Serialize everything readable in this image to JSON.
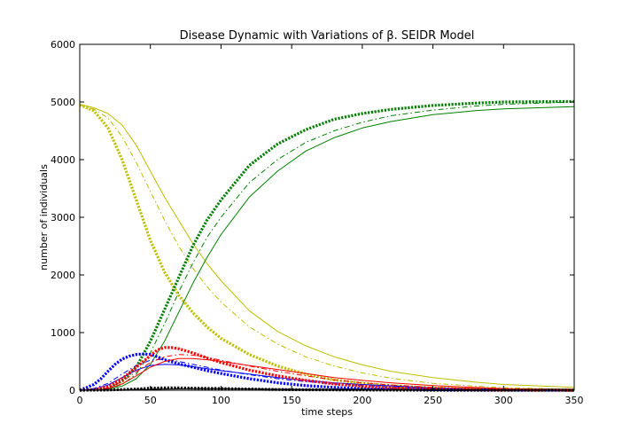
{
  "chart_data": {
    "type": "line",
    "title": "Disease Dynamic with Variations of β. SEIDR Model",
    "xlabel": "time steps",
    "ylabel": "number of individuals",
    "xlim": [
      0,
      350
    ],
    "ylim": [
      0,
      6000
    ],
    "xticks": [
      "0",
      "50",
      "100",
      "150",
      "200",
      "250",
      "300",
      "350"
    ],
    "yticks": [
      "0",
      "1000",
      "2000",
      "3000",
      "4000",
      "5000",
      "6000"
    ],
    "grid": false,
    "legend": "none",
    "series": [
      {
        "color": "#bfbf00",
        "style": "dotted-thick",
        "x": [
          0,
          10,
          20,
          30,
          40,
          50,
          60,
          70,
          80,
          90,
          100,
          120,
          140,
          160,
          180,
          200,
          220,
          250,
          280,
          300,
          350
        ],
        "y": [
          4950,
          4850,
          4550,
          4000,
          3300,
          2600,
          2050,
          1650,
          1350,
          1100,
          900,
          620,
          420,
          280,
          180,
          120,
          80,
          40,
          20,
          10,
          5
        ]
      },
      {
        "color": "#bfbf00",
        "style": "dashdot",
        "x": [
          0,
          10,
          20,
          30,
          40,
          50,
          60,
          70,
          80,
          90,
          100,
          120,
          140,
          160,
          180,
          200,
          220,
          250,
          280,
          300,
          350
        ],
        "y": [
          4950,
          4880,
          4720,
          4400,
          3950,
          3450,
          2950,
          2500,
          2120,
          1800,
          1530,
          1100,
          800,
          580,
          420,
          300,
          210,
          120,
          70,
          45,
          15
        ]
      },
      {
        "color": "#bfbf00",
        "style": "solid",
        "x": [
          0,
          10,
          20,
          30,
          40,
          50,
          60,
          70,
          80,
          90,
          100,
          120,
          140,
          160,
          180,
          200,
          220,
          250,
          280,
          300,
          350
        ],
        "y": [
          4960,
          4900,
          4800,
          4600,
          4250,
          3800,
          3350,
          2950,
          2550,
          2200,
          1900,
          1380,
          1020,
          770,
          580,
          440,
          330,
          220,
          140,
          100,
          50
        ]
      },
      {
        "color": "#008000",
        "style": "dotted-thick",
        "x": [
          0,
          10,
          20,
          30,
          40,
          50,
          60,
          70,
          80,
          90,
          100,
          120,
          140,
          160,
          180,
          200,
          220,
          250,
          280,
          300,
          350
        ],
        "y": [
          0,
          10,
          50,
          160,
          400,
          850,
          1400,
          1950,
          2500,
          2950,
          3300,
          3900,
          4270,
          4520,
          4700,
          4800,
          4870,
          4940,
          4980,
          5000,
          5010
        ]
      },
      {
        "color": "#008000",
        "style": "dashdot",
        "x": [
          0,
          10,
          20,
          30,
          40,
          50,
          60,
          70,
          80,
          90,
          100,
          120,
          140,
          160,
          180,
          200,
          220,
          250,
          280,
          300,
          350
        ],
        "y": [
          0,
          5,
          30,
          100,
          280,
          650,
          1150,
          1700,
          2200,
          2650,
          3000,
          3600,
          4000,
          4300,
          4500,
          4650,
          4760,
          4860,
          4930,
          4960,
          5000
        ]
      },
      {
        "color": "#008000",
        "style": "solid",
        "x": [
          0,
          10,
          20,
          30,
          40,
          50,
          60,
          70,
          80,
          90,
          100,
          120,
          140,
          160,
          180,
          200,
          220,
          250,
          280,
          300,
          350
        ],
        "y": [
          0,
          5,
          20,
          70,
          200,
          450,
          850,
          1350,
          1850,
          2300,
          2700,
          3350,
          3800,
          4150,
          4380,
          4550,
          4660,
          4780,
          4850,
          4880,
          4920
        ]
      },
      {
        "color": "#0000ff",
        "style": "dotted-thick",
        "x": [
          0,
          5,
          10,
          15,
          20,
          25,
          30,
          35,
          40,
          45,
          50,
          55,
          60,
          70,
          80,
          90,
          100,
          120,
          140,
          160,
          180,
          200,
          250,
          300,
          350
        ],
        "y": [
          0,
          50,
          100,
          200,
          330,
          450,
          540,
          590,
          620,
          630,
          620,
          580,
          530,
          460,
          400,
          340,
          290,
          200,
          130,
          80,
          50,
          30,
          10,
          5,
          0
        ]
      },
      {
        "color": "#0000ff",
        "style": "dashdot",
        "x": [
          0,
          10,
          20,
          30,
          40,
          50,
          60,
          70,
          80,
          100,
          120,
          140,
          160,
          180,
          200,
          250,
          300,
          350
        ],
        "y": [
          0,
          30,
          120,
          280,
          430,
          520,
          540,
          500,
          450,
          350,
          270,
          200,
          150,
          110,
          80,
          30,
          10,
          0
        ]
      },
      {
        "color": "#0000ff",
        "style": "solid",
        "x": [
          0,
          10,
          20,
          30,
          40,
          50,
          60,
          70,
          80,
          100,
          120,
          140,
          160,
          180,
          200,
          250,
          300,
          350
        ],
        "y": [
          0,
          20,
          90,
          220,
          350,
          430,
          450,
          440,
          410,
          340,
          280,
          220,
          170,
          130,
          100,
          40,
          15,
          0
        ]
      },
      {
        "color": "#ff0000",
        "style": "dotted-thick",
        "x": [
          0,
          10,
          20,
          30,
          40,
          50,
          55,
          60,
          65,
          70,
          80,
          90,
          100,
          120,
          140,
          160,
          180,
          200,
          220,
          250,
          300,
          350
        ],
        "y": [
          0,
          10,
          60,
          200,
          400,
          600,
          700,
          740,
          740,
          720,
          650,
          560,
          480,
          350,
          250,
          170,
          110,
          70,
          40,
          20,
          5,
          0
        ]
      },
      {
        "color": "#ff0000",
        "style": "dashdot",
        "x": [
          0,
          10,
          20,
          30,
          40,
          50,
          60,
          70,
          80,
          90,
          100,
          120,
          140,
          160,
          180,
          200,
          220,
          250,
          300,
          350
        ],
        "y": [
          0,
          5,
          40,
          150,
          320,
          480,
          580,
          620,
          610,
          570,
          520,
          420,
          330,
          250,
          180,
          130,
          90,
          50,
          15,
          0
        ]
      },
      {
        "color": "#ff0000",
        "style": "solid",
        "x": [
          0,
          10,
          20,
          30,
          40,
          50,
          60,
          70,
          80,
          90,
          100,
          120,
          140,
          160,
          180,
          200,
          220,
          250,
          300,
          350
        ],
        "y": [
          0,
          5,
          30,
          110,
          250,
          400,
          500,
          550,
          550,
          530,
          500,
          430,
          360,
          290,
          220,
          170,
          130,
          80,
          30,
          0
        ]
      },
      {
        "color": "#000000",
        "style": "dotted-thick",
        "x": [
          0,
          20,
          40,
          50,
          60,
          70,
          80,
          100,
          110,
          130,
          150,
          200,
          250,
          300,
          350
        ],
        "y": [
          0,
          5,
          20,
          35,
          40,
          40,
          35,
          30,
          25,
          15,
          10,
          5,
          0,
          0,
          0
        ]
      },
      {
        "color": "#000000",
        "style": "dashdot",
        "x": [
          0,
          20,
          40,
          60,
          80,
          100,
          130,
          160,
          200,
          250,
          300,
          350
        ],
        "y": [
          0,
          3,
          15,
          25,
          30,
          28,
          20,
          14,
          8,
          3,
          1,
          0
        ]
      },
      {
        "color": "#000000",
        "style": "solid",
        "x": [
          0,
          20,
          40,
          60,
          80,
          100,
          130,
          160,
          200,
          250,
          300,
          350
        ],
        "y": [
          0,
          2,
          10,
          20,
          25,
          25,
          20,
          15,
          10,
          4,
          2,
          0
        ]
      }
    ]
  }
}
